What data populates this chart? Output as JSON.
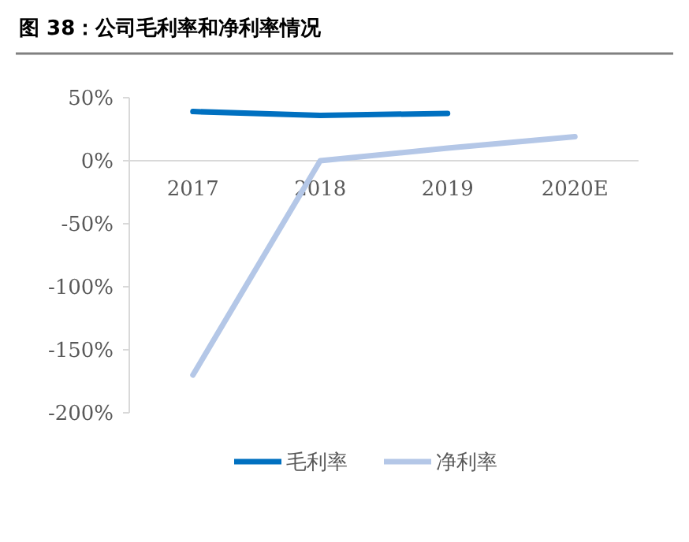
{
  "chart_data": {
    "type": "line",
    "title": "图 38：公司毛利率和净利率情况",
    "categories": [
      "2017",
      "2018",
      "2019",
      "2020E"
    ],
    "series": [
      {
        "name": "毛利率",
        "color": "#0070c0",
        "values": [
          39,
          36,
          37.5,
          null
        ]
      },
      {
        "name": "净利率",
        "color": "#b4c7e7",
        "values": [
          -170,
          0,
          10,
          19
        ]
      }
    ],
    "ylim": [
      -200,
      50
    ],
    "yticks": [
      {
        "value": -200,
        "label": "-200%"
      },
      {
        "value": -150,
        "label": "-150%"
      },
      {
        "value": -100,
        "label": "-100%"
      },
      {
        "value": -50,
        "label": "-50%"
      },
      {
        "value": 0,
        "label": "0%"
      },
      {
        "value": 50,
        "label": "50%"
      }
    ],
    "grid": false,
    "legend": "bottom",
    "marker": "none",
    "line_style": "solid"
  }
}
